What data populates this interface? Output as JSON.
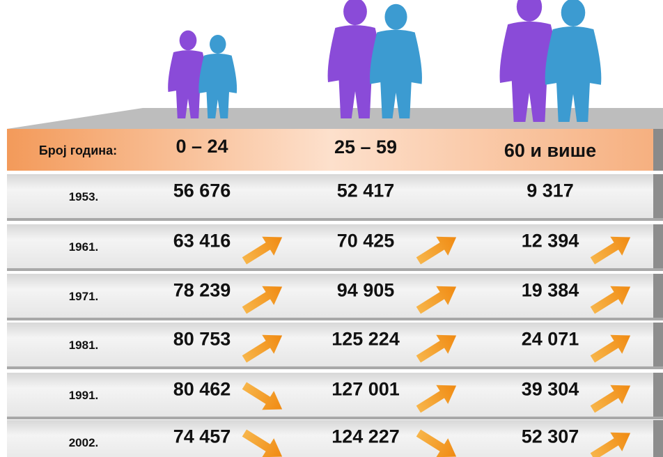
{
  "header": {
    "label": "Број година:",
    "columns": [
      "0 – 24",
      "25 – 59",
      "60 и више"
    ]
  },
  "rows": [
    {
      "year": "1953.",
      "values": [
        "56 676",
        "52 417",
        "9 317"
      ]
    },
    {
      "year": "1961.",
      "values": [
        "63 416",
        "70 425",
        "12 394"
      ]
    },
    {
      "year": "1971.",
      "values": [
        "78 239",
        "94 905",
        "19 384"
      ]
    },
    {
      "year": "1981.",
      "values": [
        "80 753",
        "125 224",
        "24 071"
      ]
    },
    {
      "year": "1991.",
      "values": [
        "80 462",
        "127 001",
        "39 304"
      ]
    },
    {
      "year": "2002.",
      "values": [
        "74 457",
        "124 227",
        "52 307"
      ]
    }
  ]
}
